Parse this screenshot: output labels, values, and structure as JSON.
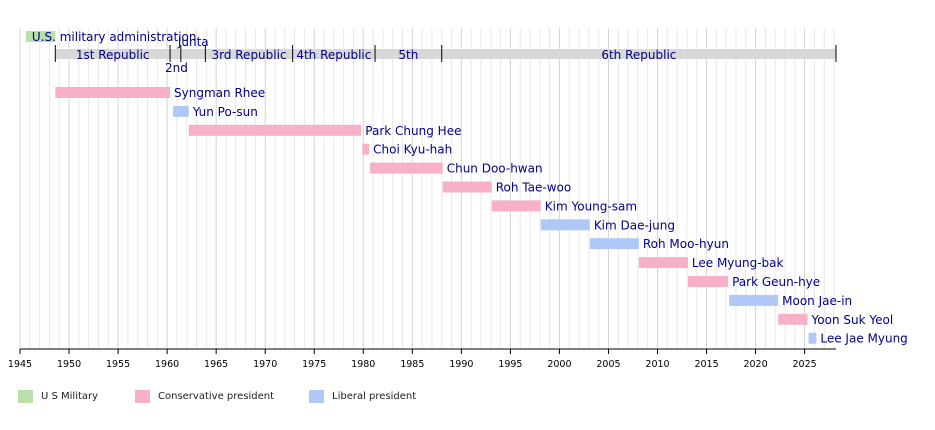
{
  "chart_data": {
    "type": "timeline",
    "x_axis": {
      "range": [
        1945,
        2028.2
      ],
      "ticks": [
        1945,
        1950,
        1955,
        1960,
        1965,
        1970,
        1975,
        1980,
        1985,
        1990,
        1995,
        2000,
        2005,
        2010,
        2015,
        2020,
        2025
      ],
      "minor_gridlines_every_year": true
    },
    "colors": {
      "us_military": "#b8e0a8",
      "conservative": "#f8b0c8",
      "liberal": "#b0c8f8",
      "republic_band": "#d8d8d8",
      "label_text": "#00008b",
      "gridline": "#e8e8e8",
      "gridline_major": "#d4d4d4"
    },
    "eras": [
      {
        "label": "U.S. military administration",
        "start": 1945.6,
        "end": 1948.6,
        "category": "us_military"
      },
      {
        "label": "1st Republic",
        "start": 1948.6,
        "end": 1960.3,
        "label_pos": "center"
      },
      {
        "label": "2nd",
        "start": 1960.3,
        "end": 1961.4,
        "label_pos": "below"
      },
      {
        "label": "Junta",
        "start": 1961.4,
        "end": 1963.9,
        "label_pos": "above"
      },
      {
        "label": "3rd Republic",
        "start": 1963.9,
        "end": 1972.8,
        "label_pos": "center"
      },
      {
        "label": "4th Republic",
        "start": 1972.8,
        "end": 1981.2,
        "label_pos": "center"
      },
      {
        "label": "5th",
        "start": 1981.2,
        "end": 1988.0,
        "label_pos": "center"
      },
      {
        "label": "6th Republic",
        "start": 1988.0,
        "end": 2028.2,
        "label_pos": "center"
      }
    ],
    "presidents": [
      {
        "name": "Syngman Rhee",
        "start": 1948.6,
        "end": 1960.3,
        "party": "conservative"
      },
      {
        "name": "Yun Po-sun",
        "start": 1960.6,
        "end": 1962.2,
        "party": "liberal"
      },
      {
        "name": "Park Chung Hee",
        "start": 1962.2,
        "end": 1979.8,
        "party": "conservative"
      },
      {
        "name": "Choi Kyu-hah",
        "start": 1979.9,
        "end": 1980.6,
        "party": "conservative"
      },
      {
        "name": "Chun Doo-hwan",
        "start": 1980.7,
        "end": 1988.1,
        "party": "conservative"
      },
      {
        "name": "Roh Tae-woo",
        "start": 1988.1,
        "end": 1993.1,
        "party": "conservative"
      },
      {
        "name": "Kim Young-sam",
        "start": 1993.1,
        "end": 1998.1,
        "party": "conservative"
      },
      {
        "name": "Kim Dae-jung",
        "start": 1998.1,
        "end": 2003.1,
        "party": "liberal"
      },
      {
        "name": "Roh Moo-hyun",
        "start": 2003.1,
        "end": 2008.1,
        "party": "liberal"
      },
      {
        "name": "Lee Myung-bak",
        "start": 2008.1,
        "end": 2013.1,
        "party": "conservative"
      },
      {
        "name": "Park Geun-hye",
        "start": 2013.1,
        "end": 2017.2,
        "party": "conservative"
      },
      {
        "name": "Moon Jae-in",
        "start": 2017.3,
        "end": 2022.3,
        "party": "liberal"
      },
      {
        "name": "Yoon Suk Yeol",
        "start": 2022.3,
        "end": 2025.3,
        "party": "conservative"
      },
      {
        "name": "Lee Jae Myung",
        "start": 2025.4,
        "end": 2026.2,
        "party": "liberal"
      }
    ],
    "legend": [
      {
        "label": "U S Military",
        "category": "us_military"
      },
      {
        "label": "Conservative president",
        "category": "conservative"
      },
      {
        "label": "Liberal president",
        "category": "liberal"
      }
    ]
  }
}
